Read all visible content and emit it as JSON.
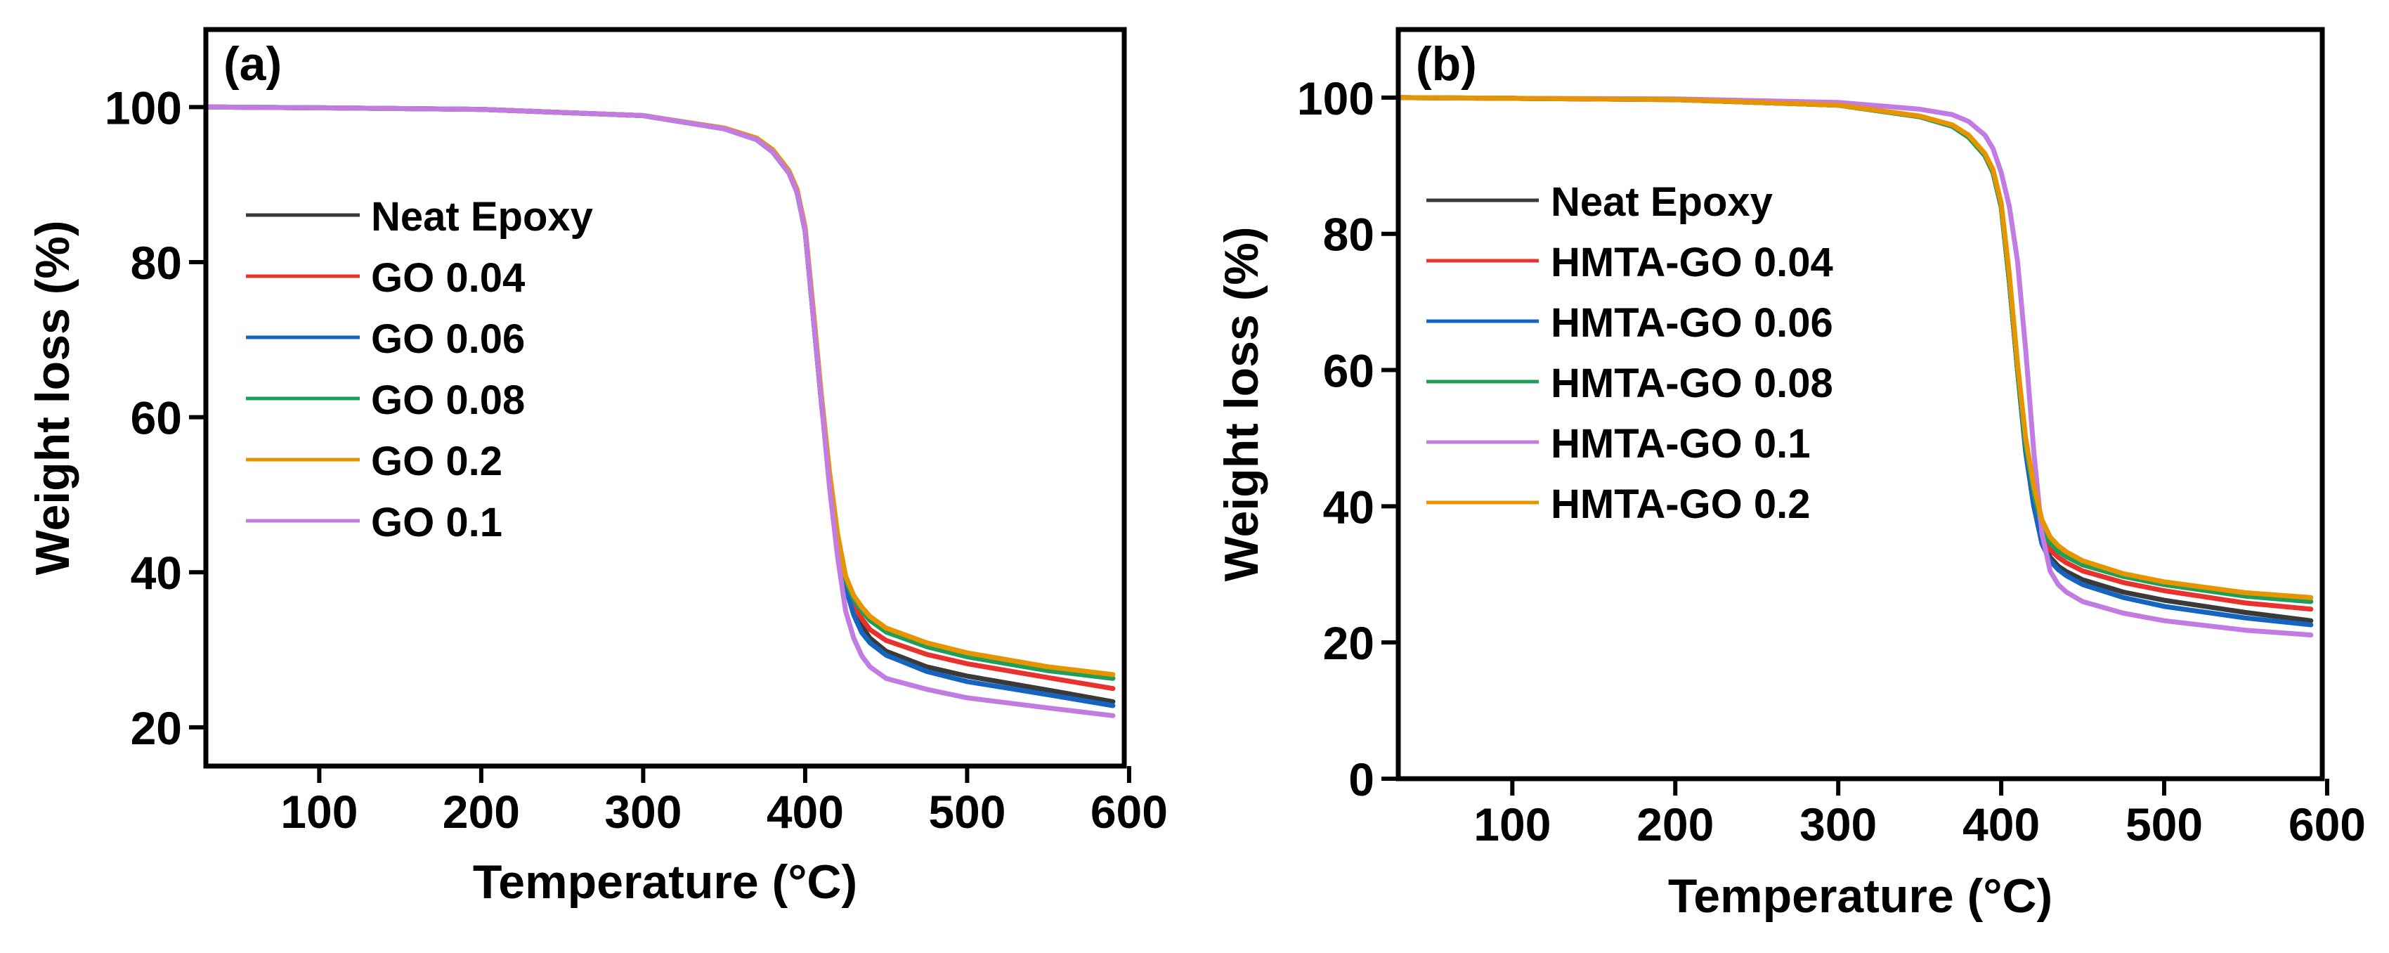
{
  "chart_data": [
    {
      "type": "line",
      "panel_label": "(a)",
      "xlabel": "Temperature (°C)",
      "ylabel": "Weight loss (%)",
      "xlim": [
        30,
        597
      ],
      "ylim": [
        15,
        110
      ],
      "xticks": [
        100,
        200,
        300,
        400,
        500,
        600
      ],
      "yticks": [
        20,
        40,
        60,
        80,
        100
      ],
      "legend_position": "center-left",
      "x": [
        30,
        100,
        200,
        300,
        350,
        370,
        380,
        390,
        395,
        400,
        405,
        410,
        415,
        420,
        425,
        430,
        435,
        440,
        450,
        475,
        500,
        550,
        590
      ],
      "series": [
        {
          "name": "Neat Epoxy",
          "color": "#3a3a3a",
          "values": [
            100,
            99.9,
            99.7,
            98.9,
            97.2,
            95.8,
            94.2,
            91.5,
            89.0,
            84.0,
            73.0,
            62.0,
            52.0,
            44.0,
            38.5,
            35.0,
            33.0,
            31.5,
            29.8,
            27.8,
            26.6,
            24.8,
            23.3
          ]
        },
        {
          "name": "GO 0.04",
          "color": "#e8322e",
          "values": [
            100,
            99.9,
            99.7,
            98.9,
            97.2,
            95.8,
            94.2,
            91.5,
            89.0,
            84.0,
            73.0,
            62.0,
            52.0,
            44.0,
            38.5,
            35.6,
            34.0,
            32.6,
            31.2,
            29.4,
            28.2,
            26.4,
            25.0
          ]
        },
        {
          "name": "GO 0.06",
          "color": "#1565c0",
          "values": [
            100,
            99.9,
            99.7,
            98.9,
            97.2,
            95.8,
            94.2,
            91.5,
            89.0,
            84.0,
            73.0,
            62.0,
            52.0,
            44.0,
            38.0,
            34.5,
            32.2,
            30.9,
            29.3,
            27.2,
            25.9,
            24.2,
            22.8
          ]
        },
        {
          "name": "GO 0.08",
          "color": "#1f9e5a",
          "values": [
            100,
            99.9,
            99.7,
            98.9,
            97.2,
            95.8,
            94.2,
            91.5,
            89.0,
            84.0,
            73.0,
            62.0,
            52.0,
            44.0,
            39.0,
            36.5,
            35.0,
            33.8,
            32.3,
            30.4,
            29.1,
            27.3,
            26.3
          ]
        },
        {
          "name": "GO 0.2",
          "color": "#e69500",
          "values": [
            100,
            99.9,
            99.7,
            98.9,
            97.3,
            96.0,
            94.5,
            91.8,
            89.4,
            84.5,
            74.0,
            63.0,
            53.0,
            45.0,
            39.5,
            37.0,
            35.5,
            34.3,
            32.8,
            30.9,
            29.6,
            27.8,
            26.8
          ]
        },
        {
          "name": "GO 0.1",
          "color": "#c27be3",
          "values": [
            100,
            99.9,
            99.7,
            98.9,
            97.2,
            95.8,
            94.2,
            91.5,
            89.0,
            84.0,
            73.0,
            62.0,
            51.0,
            42.0,
            35.0,
            31.5,
            29.2,
            27.8,
            26.3,
            24.9,
            23.8,
            22.5,
            21.5
          ]
        }
      ]
    },
    {
      "type": "line",
      "panel_label": "(b)",
      "xlabel": "Temperature (°C)",
      "ylabel": "Weight loss (%)",
      "xlim": [
        30,
        597
      ],
      "ylim": [
        0,
        110
      ],
      "xticks": [
        100,
        200,
        300,
        400,
        500,
        600
      ],
      "yticks": [
        0,
        20,
        40,
        60,
        80,
        100
      ],
      "legend_position": "center-left",
      "x": [
        30,
        100,
        200,
        300,
        350,
        370,
        380,
        390,
        395,
        400,
        405,
        410,
        415,
        420,
        425,
        430,
        435,
        440,
        450,
        475,
        500,
        550,
        590
      ],
      "series": [
        {
          "name": "Neat Epoxy",
          "color": "#3a3a3a",
          "values": [
            100,
            99.9,
            99.7,
            98.9,
            97.2,
            95.8,
            94.2,
            91.5,
            89.0,
            84.0,
            73.0,
            60.0,
            48.0,
            40.0,
            35.0,
            32.5,
            31.2,
            30.4,
            29.2,
            27.4,
            26.2,
            24.4,
            23.2
          ]
        },
        {
          "name": "HMTA-GO 0.04",
          "color": "#e8322e",
          "values": [
            100,
            99.9,
            99.7,
            98.9,
            97.2,
            95.8,
            94.2,
            91.5,
            89.0,
            84.0,
            73.0,
            60.0,
            48.5,
            41.0,
            36.0,
            33.6,
            32.5,
            31.7,
            30.5,
            28.8,
            27.6,
            25.8,
            24.9
          ]
        },
        {
          "name": "HMTA-GO 0.06",
          "color": "#1565c0",
          "values": [
            100,
            99.9,
            99.7,
            98.9,
            97.2,
            95.8,
            94.2,
            91.5,
            89.0,
            84.0,
            73.0,
            60.0,
            48.0,
            40.0,
            34.5,
            32.0,
            30.7,
            29.8,
            28.5,
            26.6,
            25.3,
            23.6,
            22.6
          ]
        },
        {
          "name": "HMTA-GO 0.08",
          "color": "#1f9e5a",
          "values": [
            100,
            99.9,
            99.7,
            98.9,
            97.2,
            95.8,
            94.2,
            91.5,
            89.0,
            84.0,
            73.0,
            60.0,
            49.0,
            42.0,
            37.0,
            34.6,
            33.4,
            32.6,
            31.4,
            29.7,
            28.5,
            26.8,
            26.0
          ]
        },
        {
          "name": "HMTA-GO 0.1",
          "color": "#c27be3",
          "values": [
            100,
            99.9,
            99.8,
            99.3,
            98.3,
            97.5,
            96.5,
            94.5,
            92.5,
            89.0,
            84.0,
            76.0,
            63.0,
            48.0,
            36.0,
            30.5,
            28.5,
            27.4,
            26.0,
            24.3,
            23.2,
            21.8,
            21.1
          ]
        },
        {
          "name": "HMTA-GO 0.2",
          "color": "#e69500",
          "values": [
            100,
            99.9,
            99.7,
            98.9,
            97.3,
            96.0,
            94.5,
            91.8,
            89.4,
            84.5,
            74.0,
            61.0,
            50.0,
            43.0,
            38.0,
            35.5,
            34.2,
            33.3,
            32.0,
            30.1,
            28.9,
            27.3,
            26.6
          ]
        }
      ]
    }
  ]
}
